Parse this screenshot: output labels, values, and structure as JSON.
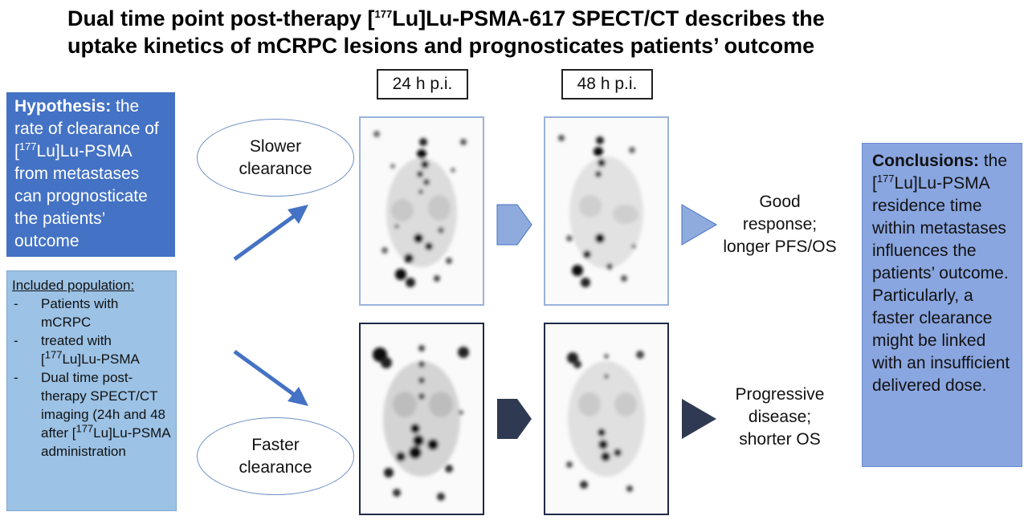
{
  "title": {
    "line1_prefix": "Dual time point post-therapy [",
    "line1_sup": "177",
    "line1_suffix": "Lu]Lu-PSMA-617  SPECT/CT describes the",
    "line2": "uptake kinetics of mCRPC lesions and prognosticates patients’ outcome"
  },
  "time_labels": {
    "t24": "24 h p.i.",
    "t48": "48 h p.i."
  },
  "hypothesis": {
    "heading": "Hypothesis:",
    "text_a": " the rate of clearance of [",
    "sup": "177",
    "text_b": "Lu]Lu-PSMA from metastases can prognosticate the patients’ outcome"
  },
  "population": {
    "heading": "Included population:",
    "items": [
      {
        "dash": "-",
        "pre": "Patients with mCRPC",
        "sup": "",
        "post": ""
      },
      {
        "dash": "-",
        "pre": "treated with [",
        "sup": "177",
        "post": "Lu]Lu-PSMA"
      },
      {
        "dash": "-",
        "pre": "Dual time post-therapy  SPECT/CT imaging (24h and 48 after [",
        "sup": "177",
        "post": "Lu]Lu-PSMA administration"
      }
    ]
  },
  "groups": {
    "slower": {
      "label_1": "Slower",
      "label_2": "clearance",
      "outcome_1": "Good",
      "outcome_2": "response;",
      "outcome_3": "longer PFS/OS"
    },
    "faster": {
      "label_1": "Faster",
      "label_2": "clearance",
      "outcome_1": "Progressive",
      "outcome_2": "disease;",
      "outcome_3": "shorter OS"
    }
  },
  "conclusions": {
    "heading": "Conclusions:",
    "text_a": " the [",
    "sup": "177",
    "text_b": "Lu]Lu-PSMA residence time within metastases influences the patients’ outcome. Particularly, a faster clearance might be linked with an insufficient delivered dose."
  },
  "colors": {
    "hypothesis_box": "#4472c4",
    "population_box": "#9cc2e5",
    "conclusions_box": "#8aa6e0",
    "arrow_blue": "#4472c4",
    "chevron_light": "#8faadc",
    "chevron_dark": "#2f3a52"
  }
}
